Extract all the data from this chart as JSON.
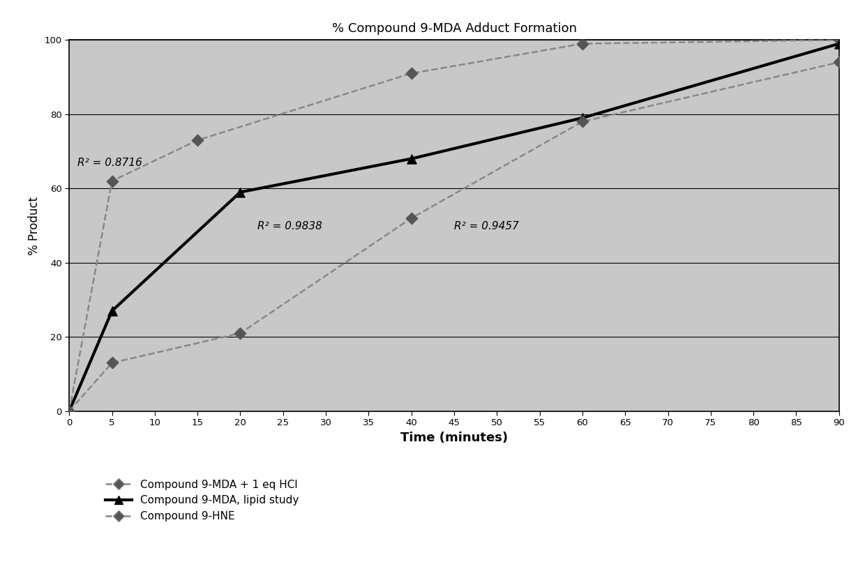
{
  "title": "% Compound 9-MDA Adduct Formation",
  "xlabel": "Time (minutes)",
  "ylabel": "% Product",
  "xlim": [
    0,
    90
  ],
  "ylim": [
    0,
    100
  ],
  "xticks": [
    0,
    5,
    10,
    15,
    20,
    25,
    30,
    35,
    40,
    45,
    50,
    55,
    60,
    65,
    70,
    75,
    80,
    85,
    90
  ],
  "yticks": [
    0,
    20,
    40,
    60,
    80,
    100
  ],
  "series": [
    {
      "name": "Compound 9-MDA + 1 eq HCl",
      "is_main": false,
      "marker": "D",
      "line_color": "#888888",
      "marker_color": "#555555",
      "linestyle": "--",
      "linewidth": 1.8,
      "markersize": 8,
      "x": [
        0,
        5,
        15,
        40,
        60,
        90
      ],
      "y": [
        0,
        62,
        73,
        91,
        99,
        100
      ],
      "r2": "R² = 0.8716",
      "r2_x": 1.0,
      "r2_y": 66
    },
    {
      "name": "Compound 9-MDA, lipid study",
      "is_main": true,
      "marker": "^",
      "line_color": "#000000",
      "marker_color": "#000000",
      "linestyle": "-",
      "linewidth": 3.0,
      "markersize": 9,
      "x": [
        0,
        5,
        20,
        40,
        60,
        90
      ],
      "y": [
        0,
        27,
        59,
        68,
        79,
        99
      ],
      "r2": "R² = 0.9838",
      "r2_x": 22,
      "r2_y": 49
    },
    {
      "name": "Compound 9-HNE",
      "is_main": false,
      "marker": "D",
      "line_color": "#888888",
      "marker_color": "#555555",
      "linestyle": "--",
      "linewidth": 1.8,
      "markersize": 8,
      "x": [
        0,
        5,
        20,
        40,
        60,
        90
      ],
      "y": [
        0,
        13,
        21,
        52,
        78,
        94
      ],
      "r2": "R² = 0.9457",
      "r2_x": 45,
      "r2_y": 49
    }
  ],
  "legend_marker_series0": "D",
  "legend_marker_series1": "^",
  "legend_marker_series2": "D"
}
